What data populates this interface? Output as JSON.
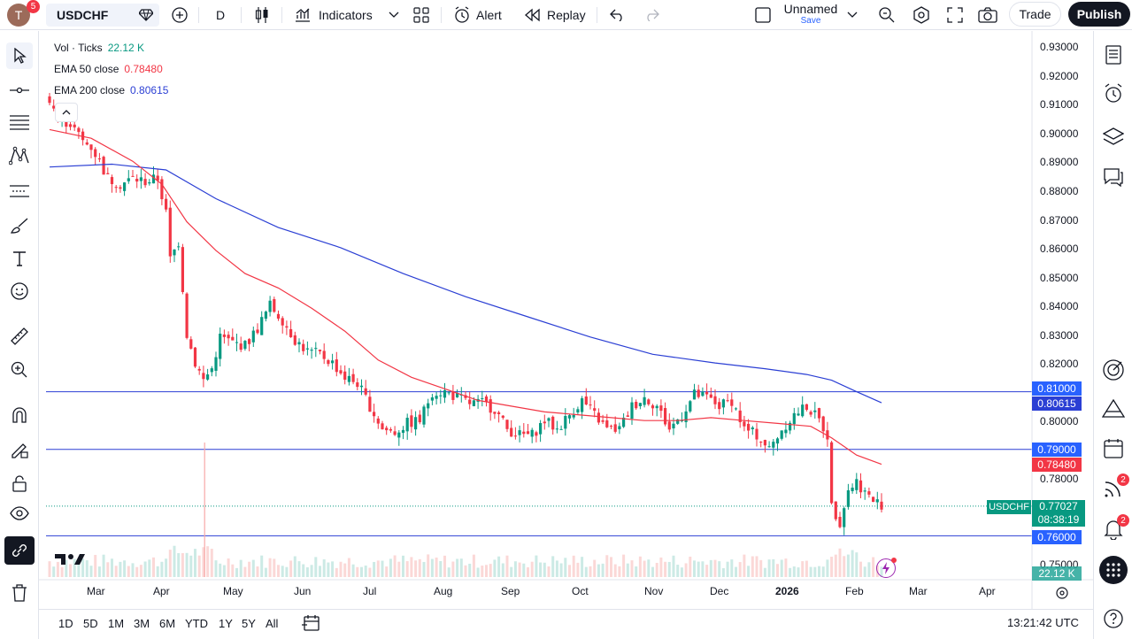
{
  "topbar": {
    "avatar_letter": "T",
    "avatar_badge": "5",
    "symbol": "USDCHF",
    "interval": "D",
    "indicators_label": "Indicators",
    "alert_label": "Alert",
    "replay_label": "Replay",
    "layout_name": "Unnamed",
    "layout_save": "Save",
    "trade_label": "Trade",
    "publish_label": "Publish"
  },
  "legend": {
    "vol_label": "Vol · Ticks",
    "vol_value": "22.12 K",
    "ema50_label": "EMA 50 close",
    "ema50_value": "0.78480",
    "ema200_label": "EMA 200 close",
    "ema200_value": "0.80615"
  },
  "price_axis": {
    "labels": [
      "0.93000",
      "0.92000",
      "0.91000",
      "0.90000",
      "0.89000",
      "0.88000",
      "0.87000",
      "0.86000",
      "0.85000",
      "0.84000",
      "0.83000",
      "0.82000",
      "0.80000",
      "0.78000",
      "0.75000"
    ],
    "tag_081": "0.81000",
    "tag_ema200": "0.80615",
    "tag_079": "0.79000",
    "tag_ema50": "0.78480",
    "tag_symbol": "USDCHF",
    "tag_last": "0.77027",
    "tag_countdown": "08:38:19",
    "tag_076": "0.76000",
    "tag_volume": "22.12 K"
  },
  "time_axis": {
    "months": [
      "Mar",
      "Apr",
      "May",
      "Jun",
      "Jul",
      "Aug",
      "Sep",
      "Oct",
      "Nov",
      "Dec",
      "2026",
      "Feb",
      "Mar",
      "Apr"
    ]
  },
  "bottombar": {
    "ranges": [
      "1D",
      "5D",
      "1M",
      "3M",
      "6M",
      "YTD",
      "1Y",
      "5Y",
      "All"
    ],
    "clock": "13:21:42 UTC"
  },
  "rightbar": {
    "ideas_badge": "2",
    "alerts_badge": "2"
  },
  "colors": {
    "up": "#089981",
    "down": "#f23645",
    "ema50": "#f23645",
    "ema200": "#2b3fd4",
    "hline": "#2b3fd4",
    "tag_blue": "#2962ff"
  },
  "chart_data": {
    "type": "candlestick",
    "symbol": "USDCHF",
    "interval": "D",
    "ylim": [
      0.75,
      0.93
    ],
    "horizontal_lines": [
      0.81,
      0.79,
      0.76
    ],
    "last_price": 0.77027,
    "ema50_last": 0.7848,
    "ema200_last": 0.80615,
    "price_path": [
      [
        0,
        0.912
      ],
      [
        2,
        0.905
      ],
      [
        5,
        0.903
      ],
      [
        8,
        0.897
      ],
      [
        10,
        0.895
      ],
      [
        12,
        0.89
      ],
      [
        14,
        0.884
      ],
      [
        17,
        0.882
      ],
      [
        20,
        0.884
      ],
      [
        23,
        0.883
      ],
      [
        26,
        0.884
      ],
      [
        28,
        0.872
      ],
      [
        29,
        0.856
      ],
      [
        31,
        0.862
      ],
      [
        33,
        0.83
      ],
      [
        35,
        0.82
      ],
      [
        37,
        0.814
      ],
      [
        39,
        0.818
      ],
      [
        41,
        0.829
      ],
      [
        44,
        0.827
      ],
      [
        47,
        0.826
      ],
      [
        50,
        0.832
      ],
      [
        53,
        0.84
      ],
      [
        56,
        0.835
      ],
      [
        59,
        0.828
      ],
      [
        62,
        0.824
      ],
      [
        65,
        0.823
      ],
      [
        68,
        0.82
      ],
      [
        71,
        0.815
      ],
      [
        74,
        0.813
      ],
      [
        77,
        0.805
      ],
      [
        80,
        0.797
      ],
      [
        83,
        0.796
      ],
      [
        86,
        0.799
      ],
      [
        89,
        0.8
      ],
      [
        92,
        0.81
      ],
      [
        95,
        0.81
      ],
      [
        98,
        0.808
      ],
      [
        101,
        0.806
      ],
      [
        104,
        0.806
      ],
      [
        107,
        0.804
      ],
      [
        110,
        0.797
      ],
      [
        113,
        0.795
      ],
      [
        116,
        0.795
      ],
      [
        119,
        0.8
      ],
      [
        122,
        0.797
      ],
      [
        125,
        0.802
      ],
      [
        128,
        0.807
      ],
      [
        131,
        0.802
      ],
      [
        134,
        0.797
      ],
      [
        137,
        0.797
      ],
      [
        140,
        0.805
      ],
      [
        143,
        0.808
      ],
      [
        146,
        0.805
      ],
      [
        149,
        0.797
      ],
      [
        152,
        0.802
      ],
      [
        155,
        0.809
      ],
      [
        158,
        0.808
      ],
      [
        161,
        0.805
      ],
      [
        164,
        0.807
      ],
      [
        167,
        0.797
      ],
      [
        170,
        0.795
      ],
      [
        173,
        0.79
      ],
      [
        176,
        0.797
      ],
      [
        179,
        0.802
      ],
      [
        182,
        0.805
      ],
      [
        185,
        0.8
      ],
      [
        187,
        0.795
      ],
      [
        188,
        0.77
      ],
      [
        190,
        0.765
      ],
      [
        192,
        0.776
      ],
      [
        194,
        0.779
      ],
      [
        196,
        0.775
      ],
      [
        198,
        0.772
      ],
      [
        200,
        0.771
      ]
    ],
    "ema50_path": [
      [
        0,
        0.901
      ],
      [
        10,
        0.898
      ],
      [
        20,
        0.89
      ],
      [
        27,
        0.882
      ],
      [
        33,
        0.869
      ],
      [
        40,
        0.859
      ],
      [
        47,
        0.851
      ],
      [
        55,
        0.846
      ],
      [
        63,
        0.839
      ],
      [
        71,
        0.831
      ],
      [
        79,
        0.821
      ],
      [
        87,
        0.815
      ],
      [
        95,
        0.811
      ],
      [
        103,
        0.807
      ],
      [
        111,
        0.805
      ],
      [
        119,
        0.803
      ],
      [
        127,
        0.802
      ],
      [
        135,
        0.801
      ],
      [
        143,
        0.8
      ],
      [
        151,
        0.8
      ],
      [
        159,
        0.801
      ],
      [
        167,
        0.8
      ],
      [
        175,
        0.799
      ],
      [
        183,
        0.798
      ],
      [
        188,
        0.794
      ],
      [
        194,
        0.788
      ],
      [
        200,
        0.7848
      ]
    ],
    "ema200_path": [
      [
        0,
        0.888
      ],
      [
        15,
        0.889
      ],
      [
        28,
        0.887
      ],
      [
        40,
        0.877
      ],
      [
        55,
        0.867
      ],
      [
        70,
        0.86
      ],
      [
        85,
        0.851
      ],
      [
        100,
        0.843
      ],
      [
        115,
        0.836
      ],
      [
        130,
        0.829
      ],
      [
        145,
        0.823
      ],
      [
        160,
        0.82
      ],
      [
        172,
        0.818
      ],
      [
        182,
        0.816
      ],
      [
        188,
        0.814
      ],
      [
        194,
        0.81
      ],
      [
        200,
        0.80615
      ]
    ]
  }
}
